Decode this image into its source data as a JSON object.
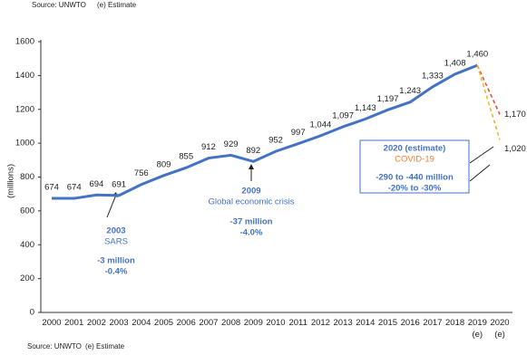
{
  "chart_data": {
    "type": "line",
    "sources": [
      {
        "source": "Source: UNWTO",
        "note": "(e) Estimate"
      },
      {
        "source": "Source: UNWTO",
        "note": "(e) Estimate"
      }
    ],
    "y_label": "(millions)",
    "categories": [
      "2000",
      "2001",
      "2002",
      "2003",
      "2004",
      "2005",
      "2006",
      "2007",
      "2008",
      "2009",
      "2010",
      "2011",
      "2012",
      "2013",
      "2014",
      "2015",
      "2016",
      "2017",
      "2018",
      "2019 (e)",
      "2020 (e)"
    ],
    "series": [
      {
        "color": "#4472c4",
        "values": [
          674,
          674,
          694,
          691,
          756,
          809,
          855,
          912,
          929,
          892,
          952,
          997,
          1044,
          1097,
          1143,
          1197,
          1243,
          1333,
          1408,
          1460,
          null
        ],
        "value_labels": [
          "674",
          "674",
          "694",
          "691",
          "756",
          "809",
          "855",
          "912",
          "929",
          "892",
          "952",
          "997",
          "1,044",
          "1,097",
          "1,143",
          "1,197",
          "1,243",
          "1,333",
          "1,408",
          "1,460",
          null
        ]
      },
      {
        "color": "#e8553a",
        "values": [
          null,
          null,
          null,
          null,
          null,
          null,
          null,
          null,
          null,
          null,
          null,
          null,
          null,
          null,
          null,
          null,
          null,
          null,
          null,
          1460,
          1170
        ],
        "value_labels": [
          null,
          null,
          null,
          null,
          null,
          null,
          null,
          null,
          null,
          null,
          null,
          null,
          null,
          null,
          null,
          null,
          null,
          null,
          null,
          null,
          "1,170"
        ]
      },
      {
        "color": "#f5b335",
        "values": [
          null,
          null,
          null,
          null,
          null,
          null,
          null,
          null,
          null,
          null,
          null,
          null,
          null,
          null,
          null,
          null,
          null,
          null,
          null,
          1460,
          1020
        ],
        "value_labels": [
          null,
          null,
          null,
          null,
          null,
          null,
          null,
          null,
          null,
          null,
          null,
          null,
          null,
          null,
          null,
          null,
          null,
          null,
          null,
          null,
          "1,020"
        ]
      }
    ],
    "ylim": [
      0,
      1600
    ],
    "yticks": [
      0,
      200,
      400,
      600,
      800,
      1000,
      1200,
      1400,
      1600
    ],
    "grid": false,
    "annotations": [
      {
        "year": "2003",
        "event": "SARS",
        "change": "-3 million",
        "percent": "-0.4%"
      },
      {
        "year": "2009",
        "event": "Global economic crisis",
        "change": "-37 million",
        "percent": "-4.0%"
      },
      {
        "year": "2020 (estimate)",
        "event": "COVID-19",
        "change": "-290 to -440 million",
        "percent": "-20% to -30%"
      }
    ]
  }
}
